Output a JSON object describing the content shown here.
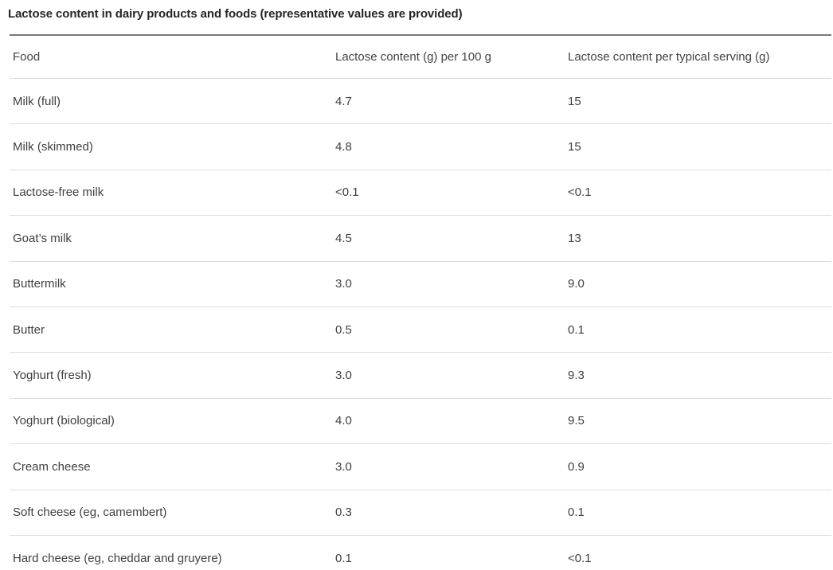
{
  "chart_data": {
    "type": "table",
    "title": "Lactose content in dairy products and foods (representative values are provided)",
    "columns": [
      "Food",
      "Lactose content (g) per 100 g",
      "Lactose content per typical serving (g)"
    ],
    "rows": [
      [
        "Milk (full)",
        "4.7",
        "15"
      ],
      [
        "Milk (skimmed)",
        "4.8",
        "15"
      ],
      [
        "Lactose-free milk",
        "<0.1",
        "<0.1"
      ],
      [
        "Goat’s milk",
        "4.5",
        "13"
      ],
      [
        "Buttermilk",
        "3.0",
        "9.0"
      ],
      [
        "Butter",
        "0.5",
        "0.1"
      ],
      [
        "Yoghurt (fresh)",
        "3.0",
        "9.3"
      ],
      [
        "Yoghurt (biological)",
        "4.0",
        "9.5"
      ],
      [
        "Cream cheese",
        "3.0",
        "0.9"
      ],
      [
        "Soft cheese (eg, camembert)",
        "0.3",
        "0.1"
      ],
      [
        "Hard cheese (eg, cheddar and gruyere)",
        "0.1",
        "<0.1"
      ]
    ],
    "layout": {
      "grid": "horizontal-row-separators-only",
      "header_rule_color": "#787878",
      "row_separator_color": "#dcdcdc",
      "title_color": "#262626",
      "text_color": "#3f3f3f",
      "background": "#ffffff"
    }
  }
}
